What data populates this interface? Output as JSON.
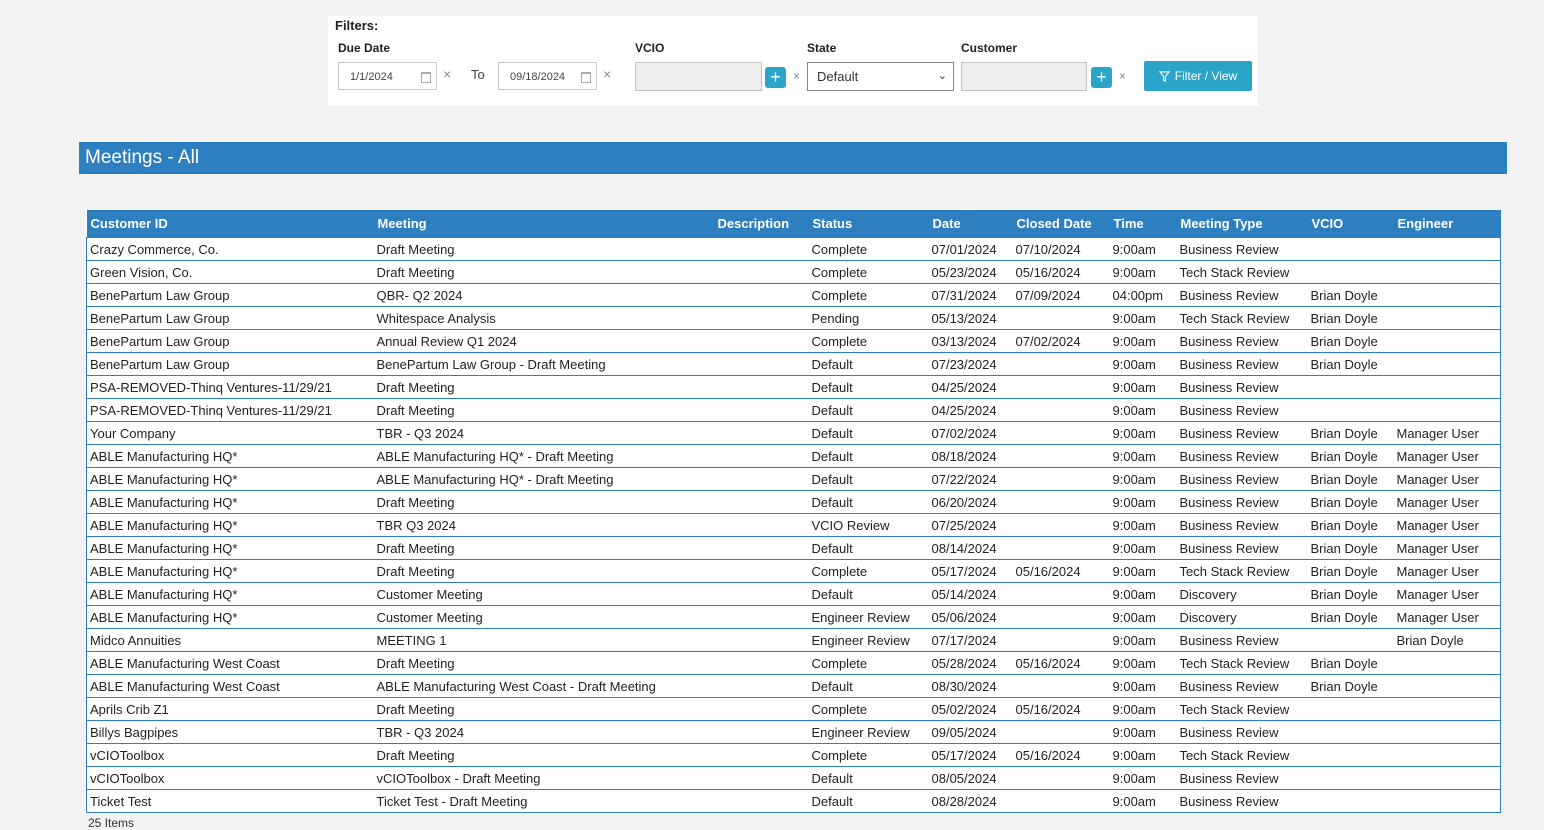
{
  "filters": {
    "title": "Filters:",
    "due_date_label": "Due Date",
    "due_from": "1/1/2024",
    "to_label": "To",
    "due_to": "09/18/2024",
    "vcio_label": "VCIO",
    "state_label": "State",
    "state_value": "Default",
    "customer_label": "Customer",
    "clear_glyph": "×",
    "add_glyph": "+",
    "filter_button": "Filter / View"
  },
  "section_title": "Meetings - All",
  "table": {
    "columns": [
      "Customer ID",
      "Meeting",
      "Description",
      "Status",
      "Date",
      "Closed Date",
      "Time",
      "Meeting Type",
      "VCIO",
      "Engineer"
    ],
    "rows": [
      [
        "Crazy Commerce, Co.",
        "Draft Meeting",
        "",
        "Complete",
        "07/01/2024",
        "07/10/2024",
        "9:00am",
        "Business Review",
        "",
        ""
      ],
      [
        "Green Vision, Co.",
        "Draft Meeting",
        "",
        "Complete",
        "05/23/2024",
        "05/16/2024",
        "9:00am",
        "Tech Stack Review",
        "",
        ""
      ],
      [
        "BenePartum Law Group",
        "QBR- Q2 2024",
        "",
        "Complete",
        "07/31/2024",
        "07/09/2024",
        "04:00pm",
        "Business Review",
        "Brian Doyle",
        ""
      ],
      [
        "BenePartum Law Group",
        "Whitespace Analysis",
        "",
        "Pending",
        "05/13/2024",
        "",
        "9:00am",
        "Tech Stack Review",
        "Brian Doyle",
        ""
      ],
      [
        "BenePartum Law Group",
        "Annual Review Q1 2024",
        "",
        "Complete",
        "03/13/2024",
        "07/02/2024",
        "9:00am",
        "Business Review",
        "Brian Doyle",
        ""
      ],
      [
        "BenePartum Law Group",
        "BenePartum Law Group - Draft Meeting",
        "",
        "Default",
        "07/23/2024",
        "",
        "9:00am",
        "Business Review",
        "Brian Doyle",
        ""
      ],
      [
        "PSA-REMOVED-Thinq Ventures-11/29/21",
        "Draft Meeting",
        "",
        "Default",
        "04/25/2024",
        "",
        "9:00am",
        "Business Review",
        "",
        ""
      ],
      [
        "PSA-REMOVED-Thinq Ventures-11/29/21",
        "Draft Meeting",
        "",
        "Default",
        "04/25/2024",
        "",
        "9:00am",
        "Business Review",
        "",
        ""
      ],
      [
        "Your Company",
        "TBR - Q3 2024",
        "",
        "Default",
        "07/02/2024",
        "",
        "9:00am",
        "Business Review",
        "Brian Doyle",
        "Manager User"
      ],
      [
        "ABLE Manufacturing HQ*",
        "ABLE Manufacturing HQ* - Draft Meeting",
        "",
        "Default",
        "08/18/2024",
        "",
        "9:00am",
        "Business Review",
        "Brian Doyle",
        "Manager User"
      ],
      [
        "ABLE Manufacturing HQ*",
        "ABLE Manufacturing HQ* - Draft Meeting",
        "",
        "Default",
        "07/22/2024",
        "",
        "9:00am",
        "Business Review",
        "Brian Doyle",
        "Manager User"
      ],
      [
        "ABLE Manufacturing HQ*",
        "Draft Meeting",
        "",
        "Default",
        "06/20/2024",
        "",
        "9:00am",
        "Business Review",
        "Brian Doyle",
        "Manager User"
      ],
      [
        "ABLE Manufacturing HQ*",
        "TBR Q3 2024",
        "",
        "VCIO Review",
        "07/25/2024",
        "",
        "9:00am",
        "Business Review",
        "Brian Doyle",
        "Manager User"
      ],
      [
        "ABLE Manufacturing HQ*",
        "Draft Meeting",
        "",
        "Default",
        "08/14/2024",
        "",
        "9:00am",
        "Business Review",
        "Brian Doyle",
        "Manager User"
      ],
      [
        "ABLE Manufacturing HQ*",
        "Draft Meeting",
        "",
        "Complete",
        "05/17/2024",
        "05/16/2024",
        "9:00am",
        "Tech Stack Review",
        "Brian Doyle",
        "Manager User"
      ],
      [
        "ABLE Manufacturing HQ*",
        "Customer Meeting",
        "",
        "Default",
        "05/14/2024",
        "",
        "9:00am",
        "Discovery",
        "Brian Doyle",
        "Manager User"
      ],
      [
        "ABLE Manufacturing HQ*",
        "Customer Meeting",
        "",
        "Engineer Review",
        "05/06/2024",
        "",
        "9:00am",
        "Discovery",
        "Brian Doyle",
        "Manager User"
      ],
      [
        "Midco Annuities",
        "MEETING 1",
        "",
        "Engineer Review",
        "07/17/2024",
        "",
        "9:00am",
        "Business Review",
        "",
        "Brian Doyle"
      ],
      [
        "ABLE Manufacturing West Coast",
        "Draft Meeting",
        "",
        "Complete",
        "05/28/2024",
        "05/16/2024",
        "9:00am",
        "Tech Stack Review",
        "Brian Doyle",
        ""
      ],
      [
        "ABLE Manufacturing West Coast",
        "ABLE Manufacturing West Coast - Draft Meeting",
        "",
        "Default",
        "08/30/2024",
        "",
        "9:00am",
        "Business Review",
        "Brian Doyle",
        ""
      ],
      [
        "Aprils Crib Z1",
        "Draft Meeting",
        "",
        "Complete",
        "05/02/2024",
        "05/16/2024",
        "9:00am",
        "Tech Stack Review",
        "",
        ""
      ],
      [
        "Billys Bagpipes",
        "TBR - Q3 2024",
        "",
        "Engineer Review",
        "09/05/2024",
        "",
        "9:00am",
        "Business Review",
        "",
        ""
      ],
      [
        "vCIOToolbox",
        "Draft Meeting",
        "",
        "Complete",
        "05/17/2024",
        "05/16/2024",
        "9:00am",
        "Tech Stack Review",
        "",
        ""
      ],
      [
        "vCIOToolbox",
        "vCIOToolbox - Draft Meeting",
        "",
        "Default",
        "08/05/2024",
        "",
        "9:00am",
        "Business Review",
        "",
        ""
      ],
      [
        "Ticket Test",
        "Ticket Test - Draft Meeting",
        "",
        "Default",
        "08/28/2024",
        "",
        "9:00am",
        "Business Review",
        "",
        ""
      ]
    ]
  },
  "footer": {
    "items_count": "25 Items"
  },
  "colors": {
    "header_blue": "#2e7fbf",
    "button_teal": "#2aa4c9"
  }
}
